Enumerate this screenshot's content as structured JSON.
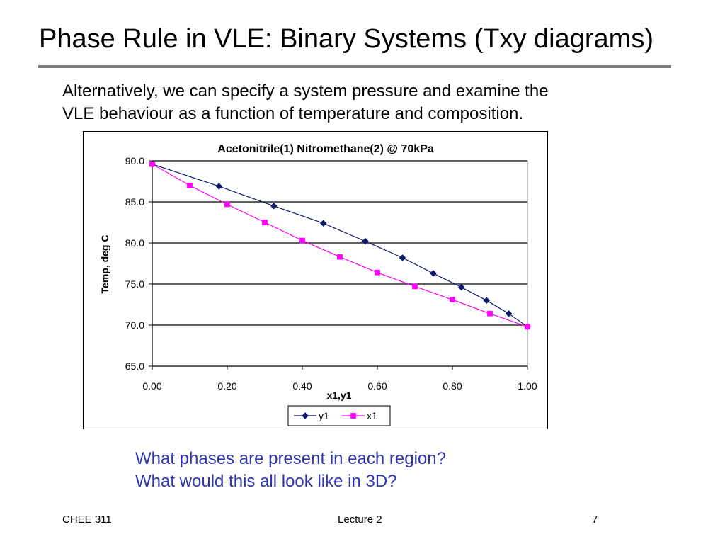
{
  "slide": {
    "title": "Phase Rule in VLE: Binary Systems (Txy diagrams)",
    "intro_line1": "Alternatively, we can specify a system pressure and examine the",
    "intro_line2": "VLE behaviour as a function of temperature and composition.",
    "question1": "What phases are present in each region?",
    "question2": "What would this all look like in 3D?",
    "accent_color": "#2e35b5"
  },
  "footer": {
    "course": "CHEE 311",
    "lecture": "Lecture 2",
    "page": "7"
  },
  "chart_data": {
    "type": "scatter",
    "title": "Acetonitrile(1) Nitromethane(2) @ 70kPa",
    "xlabel": "x1,y1",
    "ylabel": "Temp, deg C",
    "xlim": [
      0,
      1
    ],
    "ylim": [
      65,
      90
    ],
    "x_ticks": [
      "0.00",
      "0.20",
      "0.40",
      "0.60",
      "0.80",
      "1.00"
    ],
    "y_ticks": [
      "65.0",
      "70.0",
      "75.0",
      "80.0",
      "85.0",
      "90.0"
    ],
    "grid": "horizontal",
    "legend_position": "bottom",
    "series": [
      {
        "name": "y1",
        "color": "#0a1a6e",
        "marker": "diamond",
        "points": [
          [
            0.0,
            89.6
          ],
          [
            0.178,
            86.9
          ],
          [
            0.324,
            84.5
          ],
          [
            0.456,
            82.4
          ],
          [
            0.568,
            80.2
          ],
          [
            0.667,
            78.2
          ],
          [
            0.749,
            76.3
          ],
          [
            0.824,
            74.6
          ],
          [
            0.891,
            73.0
          ],
          [
            0.95,
            71.4
          ],
          [
            1.0,
            69.8
          ]
        ]
      },
      {
        "name": "x1",
        "color": "#ff00ff",
        "marker": "square",
        "points": [
          [
            0.0,
            89.6
          ],
          [
            0.1,
            87.0
          ],
          [
            0.2,
            84.7
          ],
          [
            0.3,
            82.5
          ],
          [
            0.4,
            80.3
          ],
          [
            0.5,
            78.3
          ],
          [
            0.6,
            76.4
          ],
          [
            0.7,
            74.7
          ],
          [
            0.8,
            73.1
          ],
          [
            0.9,
            71.4
          ],
          [
            1.0,
            69.8
          ]
        ]
      }
    ]
  }
}
